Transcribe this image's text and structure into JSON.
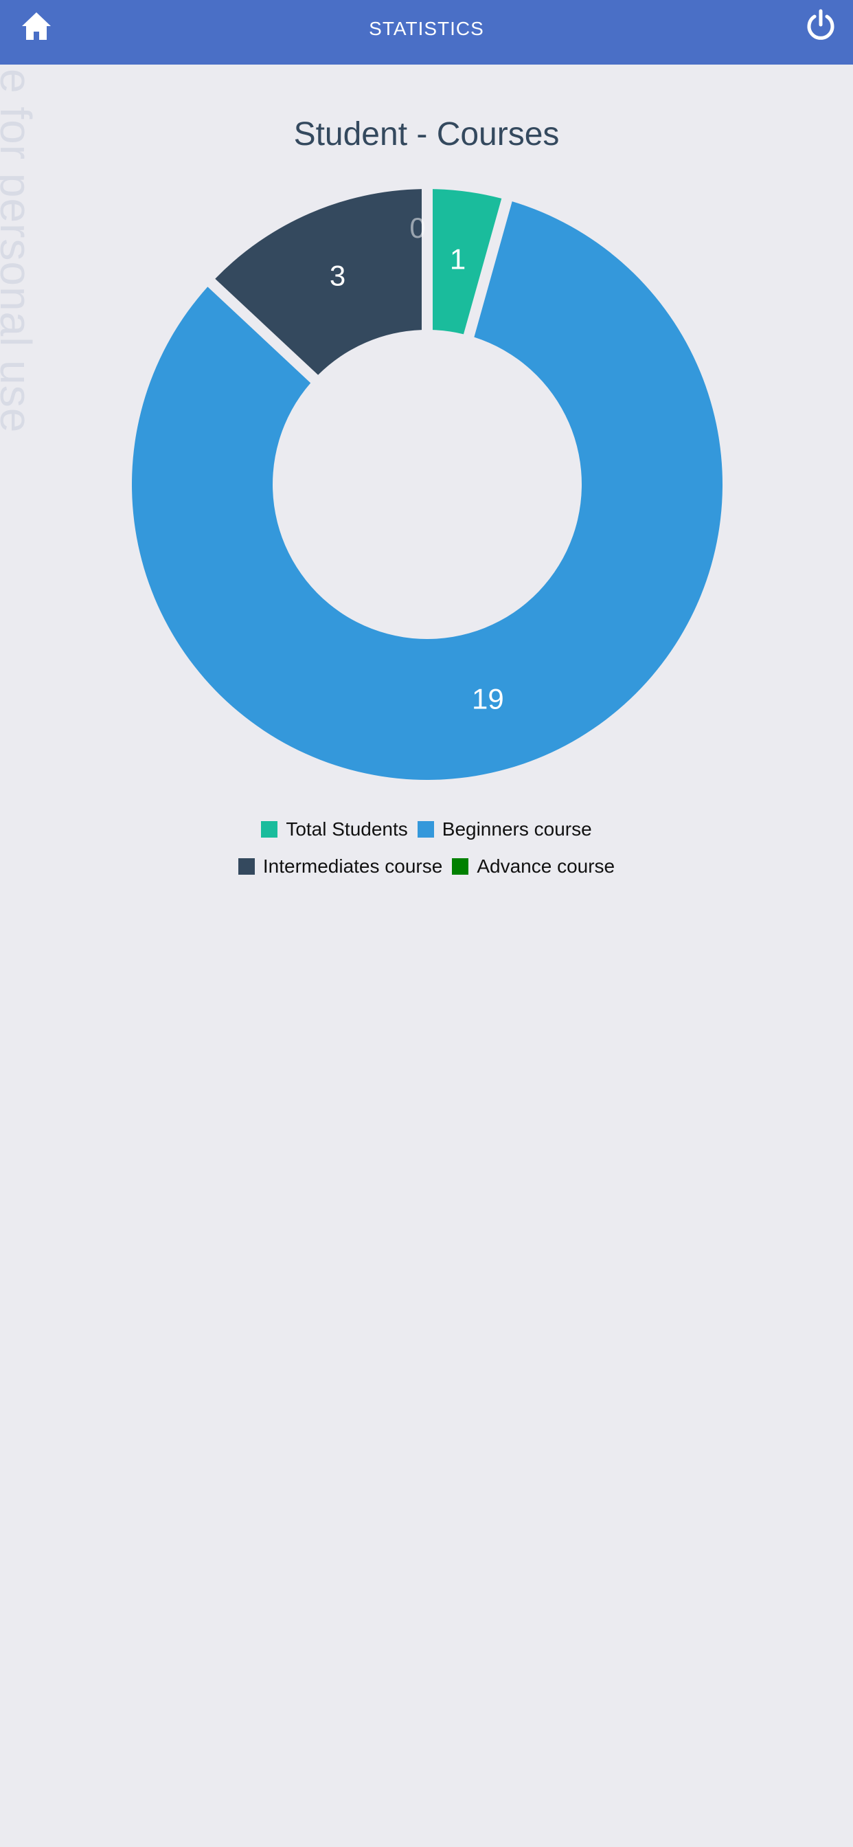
{
  "header": {
    "title": "STATISTICS",
    "home_icon": "home-icon",
    "power_icon": "power-icon",
    "background": "#4a6fc6"
  },
  "watermark": {
    "text": "e for personal use"
  },
  "chart_data": {
    "type": "pie",
    "variant": "doughnut",
    "title": "Student - Courses",
    "categories": [
      "Total Students",
      "Beginners course",
      "Intermediates course",
      "Advance course"
    ],
    "values": [
      1,
      19,
      3,
      0
    ],
    "data_labels": [
      "1",
      "19",
      "3",
      "0"
    ],
    "colors": [
      "#1abc9c",
      "#3498db",
      "#34495e",
      "#008000"
    ],
    "legend_position": "bottom"
  },
  "legend": {
    "rows": [
      [
        {
          "label": "Total Students",
          "color": "#1abc9c"
        },
        {
          "label": "Beginners course",
          "color": "#3498db"
        }
      ],
      [
        {
          "label": "Intermediates course",
          "color": "#34495e"
        },
        {
          "label": "Advance course",
          "color": "#008000"
        }
      ]
    ]
  }
}
